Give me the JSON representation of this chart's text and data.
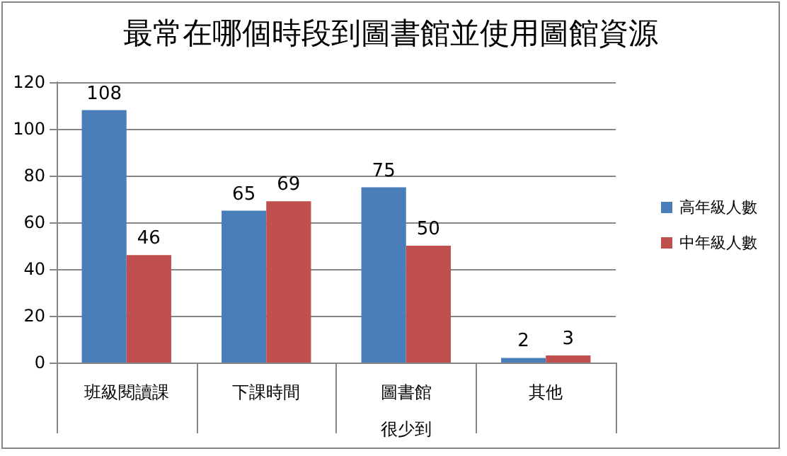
{
  "chart_data": {
    "type": "bar",
    "title": "最常在哪個時段到圖書館並使用圖館資源",
    "categories": [
      "班級閱讀課",
      "下課時間",
      "圖書館很少到",
      "其他"
    ],
    "series": [
      {
        "name": "高年級人數",
        "color": "#4a7ebb",
        "values": [
          108,
          65,
          75,
          2
        ]
      },
      {
        "name": "中年級人數",
        "color": "#c0504d",
        "values": [
          46,
          69,
          50,
          3
        ]
      }
    ],
    "ylim": [
      0,
      120
    ],
    "yticks": [
      0,
      20,
      40,
      60,
      80,
      100,
      120
    ],
    "grid": "y",
    "legend": "right",
    "data_labels": true
  }
}
